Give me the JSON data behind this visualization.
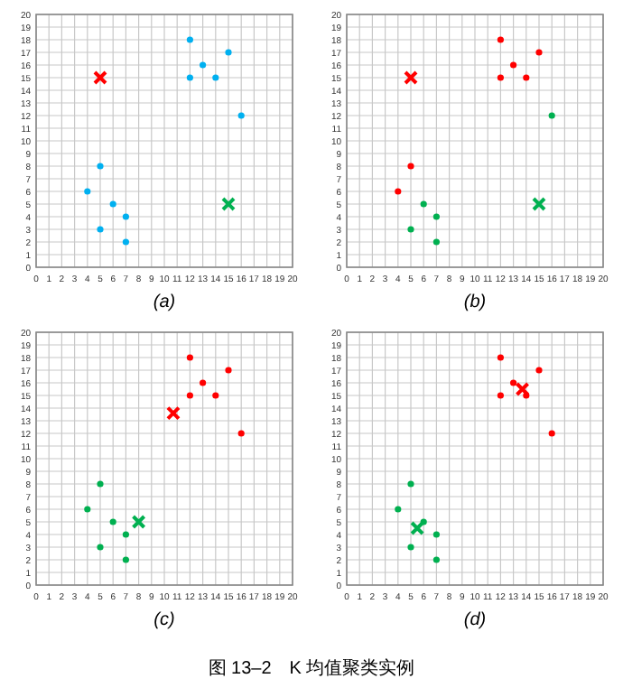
{
  "chart_data": [
    {
      "type": "scatter",
      "xlabel": "(a)",
      "xlim": [
        0,
        20
      ],
      "ylim": [
        0,
        20
      ],
      "xticks": [
        0,
        1,
        2,
        3,
        4,
        5,
        6,
        7,
        8,
        9,
        10,
        11,
        12,
        13,
        14,
        15,
        16,
        17,
        18,
        19,
        20
      ],
      "yticks": [
        0,
        1,
        2,
        3,
        4,
        5,
        6,
        7,
        8,
        9,
        10,
        11,
        12,
        13,
        14,
        15,
        16,
        17,
        18,
        19,
        20
      ],
      "grid": true,
      "series": [
        {
          "color": "#00b0f0",
          "marker": "circle",
          "x": [
            4,
            5,
            6,
            7,
            5,
            7,
            12,
            12,
            13,
            14,
            15,
            16
          ],
          "values": [
            6,
            8,
            5,
            4,
            3,
            2,
            18,
            15,
            16,
            15,
            17,
            12
          ]
        },
        {
          "color": "#ff0000",
          "marker": "cross",
          "x": [
            5
          ],
          "values": [
            15
          ]
        },
        {
          "color": "#00b050",
          "marker": "cross",
          "x": [
            15
          ],
          "values": [
            5
          ]
        }
      ]
    },
    {
      "type": "scatter",
      "xlabel": "(b)",
      "xlim": [
        0,
        20
      ],
      "ylim": [
        0,
        20
      ],
      "xticks": [
        0,
        1,
        2,
        3,
        4,
        5,
        6,
        7,
        8,
        9,
        10,
        11,
        12,
        13,
        14,
        15,
        16,
        17,
        18,
        19,
        20
      ],
      "yticks": [
        0,
        1,
        2,
        3,
        4,
        5,
        6,
        7,
        8,
        9,
        10,
        11,
        12,
        13,
        14,
        15,
        16,
        17,
        18,
        19,
        20
      ],
      "grid": true,
      "series": [
        {
          "color": "#ff0000",
          "marker": "circle",
          "x": [
            4,
            5,
            12,
            12,
            13,
            14,
            15
          ],
          "values": [
            6,
            8,
            18,
            15,
            16,
            15,
            17
          ]
        },
        {
          "color": "#00b050",
          "marker": "circle",
          "x": [
            6,
            7,
            5,
            7,
            16
          ],
          "values": [
            5,
            4,
            3,
            2,
            12
          ]
        },
        {
          "color": "#ff0000",
          "marker": "cross",
          "x": [
            5
          ],
          "values": [
            15
          ]
        },
        {
          "color": "#00b050",
          "marker": "cross",
          "x": [
            15
          ],
          "values": [
            5
          ]
        }
      ]
    },
    {
      "type": "scatter",
      "xlabel": "(c)",
      "xlim": [
        0,
        20
      ],
      "ylim": [
        0,
        20
      ],
      "xticks": [
        0,
        1,
        2,
        3,
        4,
        5,
        6,
        7,
        8,
        9,
        10,
        11,
        12,
        13,
        14,
        15,
        16,
        17,
        18,
        19,
        20
      ],
      "yticks": [
        0,
        1,
        2,
        3,
        4,
        5,
        6,
        7,
        8,
        9,
        10,
        11,
        12,
        13,
        14,
        15,
        16,
        17,
        18,
        19,
        20
      ],
      "grid": true,
      "series": [
        {
          "color": "#ff0000",
          "marker": "circle",
          "x": [
            12,
            12,
            13,
            14,
            15,
            16
          ],
          "values": [
            18,
            15,
            16,
            15,
            17,
            12
          ]
        },
        {
          "color": "#00b050",
          "marker": "circle",
          "x": [
            4,
            5,
            6,
            7,
            5,
            7
          ],
          "values": [
            6,
            8,
            5,
            4,
            3,
            2
          ]
        },
        {
          "color": "#ff0000",
          "marker": "cross",
          "x": [
            10.7
          ],
          "values": [
            13.6
          ]
        },
        {
          "color": "#00b050",
          "marker": "cross",
          "x": [
            8
          ],
          "values": [
            5
          ]
        }
      ]
    },
    {
      "type": "scatter",
      "xlabel": "(d)",
      "xlim": [
        0,
        20
      ],
      "ylim": [
        0,
        20
      ],
      "xticks": [
        0,
        1,
        2,
        3,
        4,
        5,
        6,
        7,
        8,
        9,
        10,
        11,
        12,
        13,
        14,
        15,
        16,
        17,
        18,
        19,
        20
      ],
      "yticks": [
        0,
        1,
        2,
        3,
        4,
        5,
        6,
        7,
        8,
        9,
        10,
        11,
        12,
        13,
        14,
        15,
        16,
        17,
        18,
        19,
        20
      ],
      "grid": true,
      "annotations": [
        "图 13–2　K 均值聚类实例"
      ],
      "series": [
        {
          "color": "#ff0000",
          "marker": "circle",
          "x": [
            12,
            12,
            13,
            14,
            15,
            16
          ],
          "values": [
            18,
            15,
            16,
            15,
            17,
            12
          ]
        },
        {
          "color": "#00b050",
          "marker": "circle",
          "x": [
            4,
            5,
            6,
            7,
            5,
            7
          ],
          "values": [
            6,
            8,
            5,
            4,
            3,
            2
          ]
        },
        {
          "color": "#ff0000",
          "marker": "cross",
          "x": [
            13.7
          ],
          "values": [
            15.5
          ]
        },
        {
          "color": "#00b050",
          "marker": "cross",
          "x": [
            5.5
          ],
          "values": [
            4.5
          ]
        }
      ]
    }
  ]
}
